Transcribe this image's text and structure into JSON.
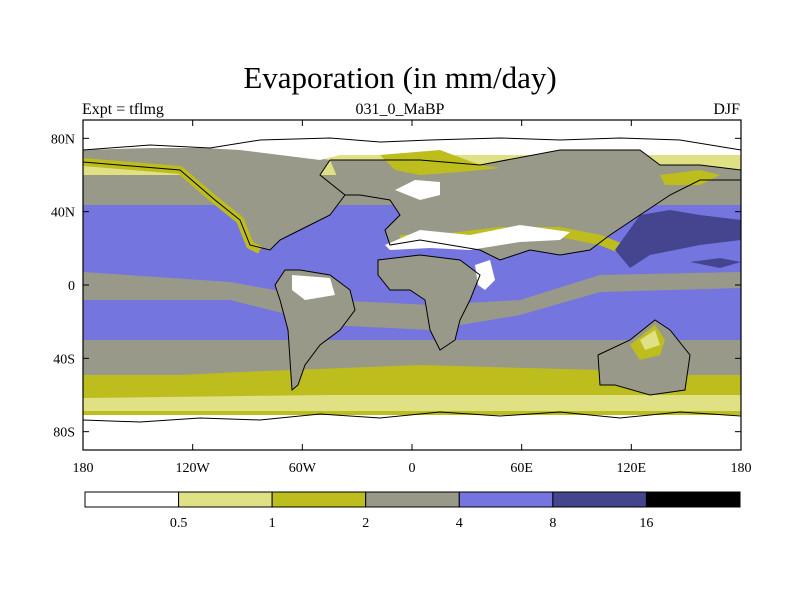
{
  "chart_data": {
    "type": "heatmap",
    "title": "Evaporation (in mm/day)",
    "left_string": "Expt = tflmg",
    "center_string": "031_0_MaBP",
    "right_string": "DJF",
    "x_ticks": [
      "180",
      "120W",
      "60W",
      "0",
      "60E",
      "120E",
      "180"
    ],
    "y_ticks": [
      "80N",
      "40N",
      "0",
      "40S",
      "80S"
    ],
    "xlim": [
      -180,
      180
    ],
    "ylim": [
      -90,
      90
    ],
    "colorbar": {
      "levels": [
        "0.5",
        "1",
        "2",
        "4",
        "8",
        "16"
      ],
      "colors": [
        "#ffffff",
        "#e0e085",
        "#bdbd1e",
        "#99998a",
        "#7575e0",
        "#45458f",
        "#000000"
      ]
    },
    "colors": {
      "land_outline": "#000000",
      "frame": "#000000"
    }
  }
}
